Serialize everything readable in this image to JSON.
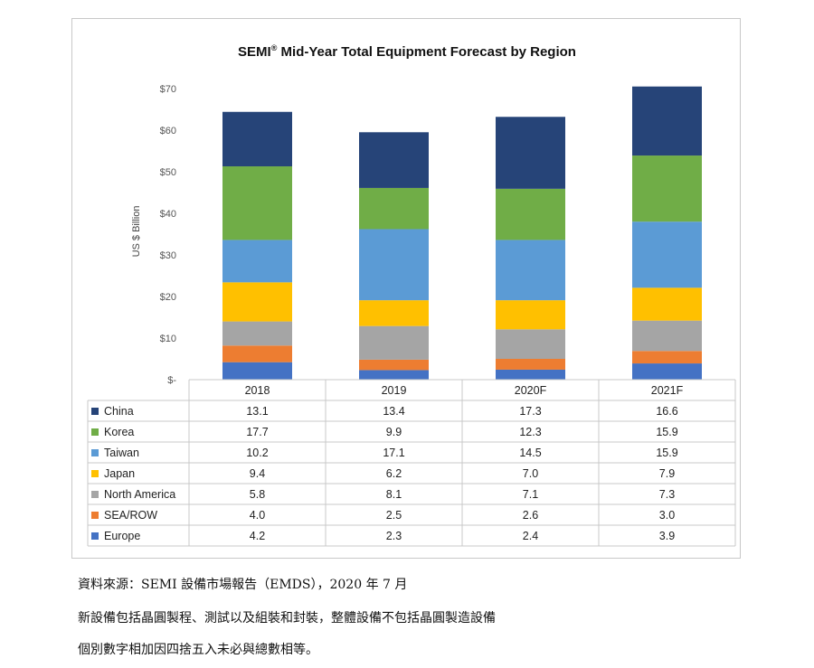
{
  "chart_data": {
    "type": "bar",
    "stacked": true,
    "title": "SEMI",
    "title_mark": "®",
    "title_rest": "Mid-Year Total Equipment Forecast by Region",
    "ylabel": "US $ Billion",
    "ylim": [
      0,
      70
    ],
    "yticks": [
      0,
      10,
      20,
      30,
      40,
      50,
      60,
      70
    ],
    "ytick_labels": [
      "$-",
      "$10",
      "$20",
      "$30",
      "$40",
      "$50",
      "$60",
      "$70"
    ],
    "categories": [
      "2018",
      "2019",
      "2020F",
      "2021F"
    ],
    "series": [
      {
        "name": "Europe",
        "color": "#4472c4",
        "values": [
          4.2,
          2.3,
          2.4,
          3.9
        ]
      },
      {
        "name": "SEA/ROW",
        "color": "#ed7d31",
        "values": [
          4.0,
          2.5,
          2.6,
          3.0
        ]
      },
      {
        "name": "North America",
        "color": "#a5a5a5",
        "values": [
          5.8,
          8.1,
          7.1,
          7.3
        ]
      },
      {
        "name": "Japan",
        "color": "#ffc000",
        "values": [
          9.4,
          6.2,
          7.0,
          7.9
        ]
      },
      {
        "name": "Taiwan",
        "color": "#5b9bd5",
        "values": [
          10.2,
          17.1,
          14.5,
          15.9
        ]
      },
      {
        "name": "Korea",
        "color": "#70ad47",
        "values": [
          17.7,
          9.9,
          12.3,
          15.9
        ]
      },
      {
        "name": "China",
        "color": "#264478",
        "values": [
          13.1,
          13.4,
          17.3,
          16.6
        ]
      }
    ],
    "table_labels": {
      "China": [
        "13.1",
        "13.4",
        "17.3",
        "16.6"
      ],
      "Korea": [
        "17.7",
        "9.9",
        "12.3",
        "15.9"
      ],
      "Taiwan": [
        "10.2",
        "17.1",
        "14.5",
        "15.9"
      ],
      "Japan": [
        "9.4",
        "6.2",
        "7.0",
        "7.9"
      ],
      "North America": [
        "5.8",
        "8.1",
        "7.1",
        "7.3"
      ],
      "SEA/ROW": [
        "4.0",
        "2.5",
        "2.6",
        "3.0"
      ],
      "Europe": [
        "4.2",
        "2.3",
        "2.4",
        "3.9"
      ]
    },
    "table_order": [
      "China",
      "Korea",
      "Taiwan",
      "Japan",
      "North America",
      "SEA/ROW",
      "Europe"
    ]
  },
  "captions": {
    "source": "資料來源：SEMI 設備市場報告（EMDS），2020 年 7 月",
    "note1": "新設備包括晶圓製程、測試以及組裝和封裝，整體設備不包括晶圓製造設備",
    "note2": "個別數字相加因四捨五入未必與總數相等。"
  }
}
